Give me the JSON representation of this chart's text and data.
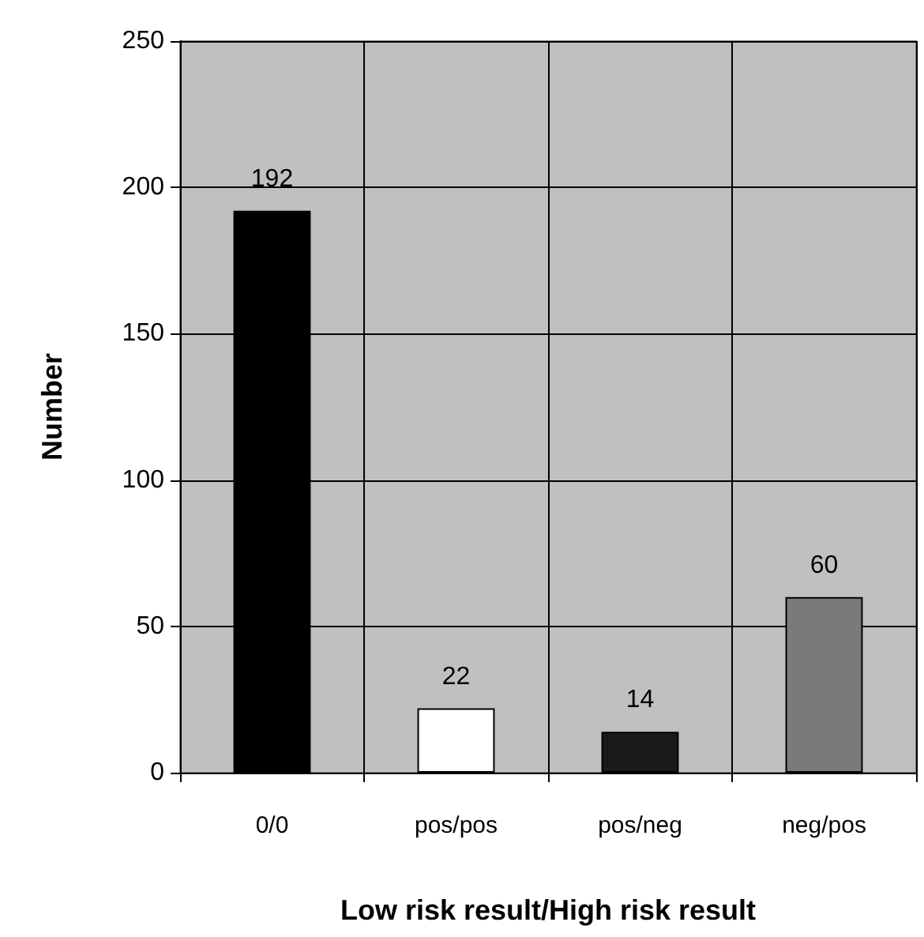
{
  "chart_data": {
    "type": "bar",
    "xlabel": "Low risk result/High risk result",
    "ylabel": "Number",
    "categories": [
      "0/0",
      "pos/pos",
      "pos/neg",
      "neg/pos"
    ],
    "values": [
      192,
      22,
      14,
      60
    ],
    "colors": [
      "#000000",
      "#ffffff",
      "#1a1a1a",
      "#7a7a7a"
    ],
    "ylim": [
      0,
      250
    ],
    "yticks": [
      0,
      50,
      100,
      150,
      200,
      250
    ],
    "grid": true,
    "data_labels": true
  }
}
